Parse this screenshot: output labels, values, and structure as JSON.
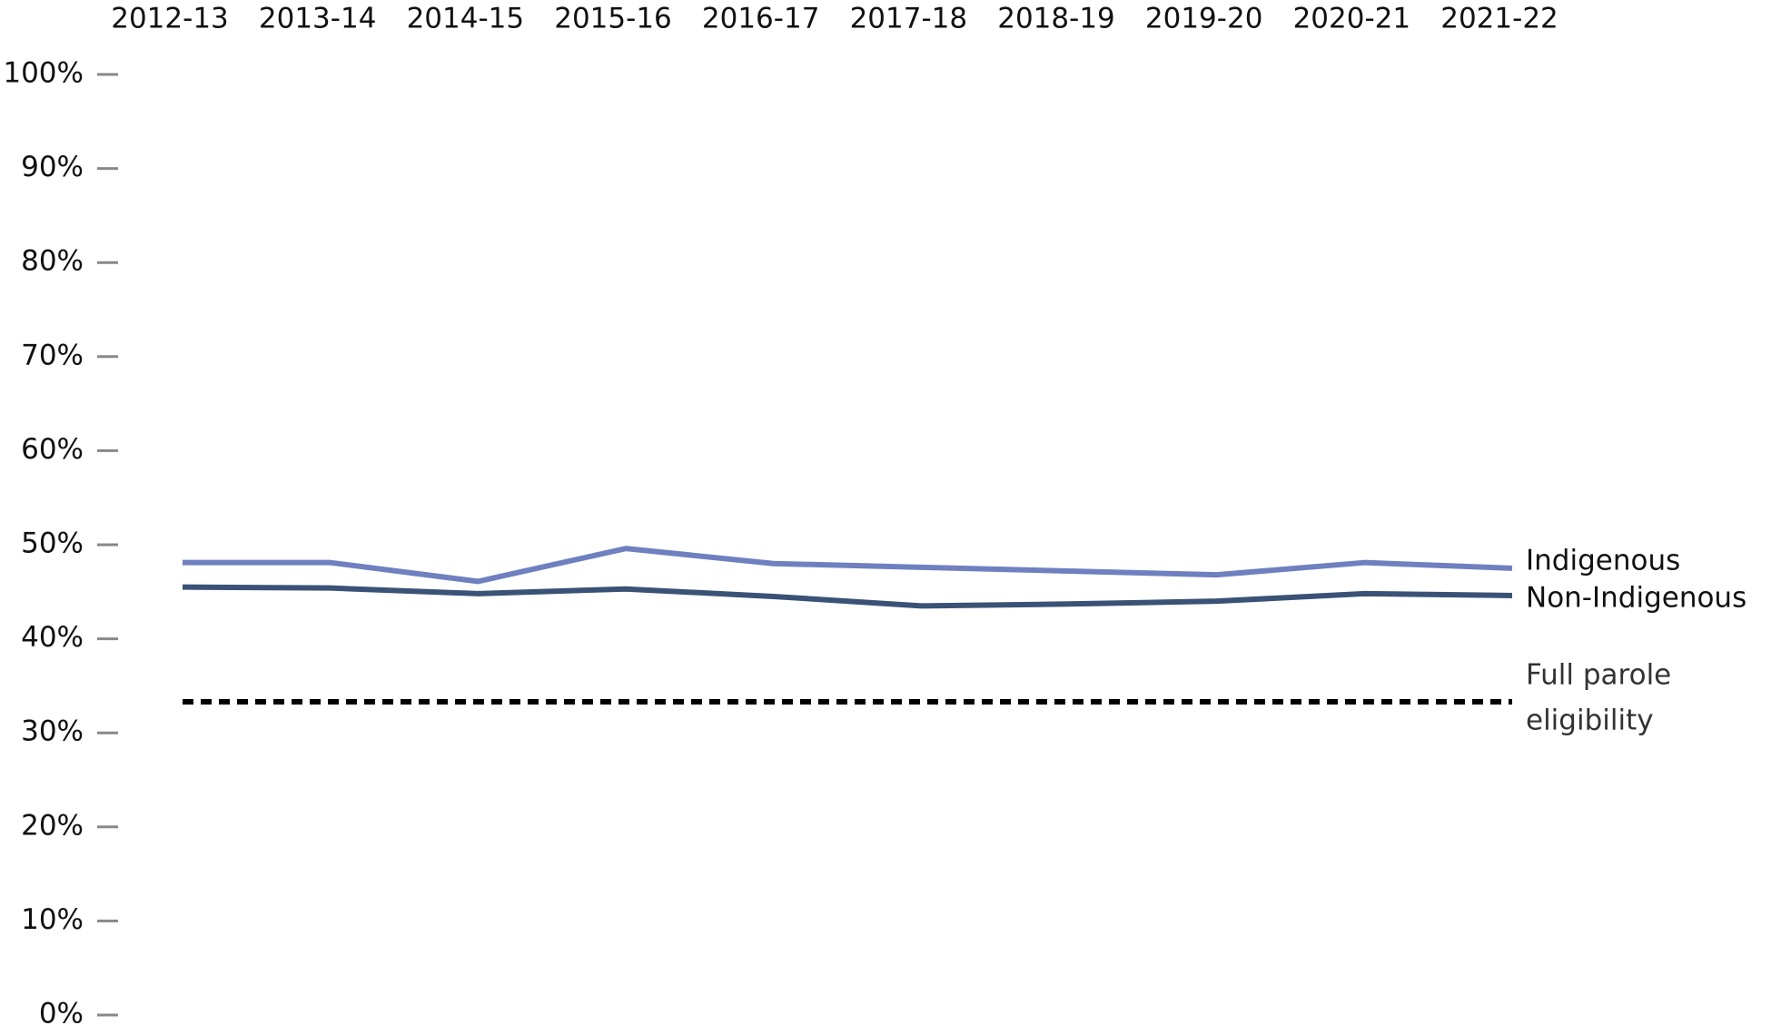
{
  "chart_data": {
    "type": "line",
    "categories": [
      "2012-13",
      "2013-14",
      "2014-15",
      "2015-16",
      "2016-17",
      "2017-18",
      "2018-19",
      "2019-20",
      "2020-21",
      "2021-22"
    ],
    "series": [
      {
        "name": "Indigenous",
        "color": "#6f80c0",
        "values": [
          48.1,
          48.1,
          46.1,
          49.6,
          48.0,
          47.6,
          47.2,
          46.8,
          48.1,
          47.5
        ]
      },
      {
        "name": "Non-Indigenous",
        "color": "#3a5276",
        "values": [
          45.5,
          45.4,
          44.8,
          45.3,
          44.5,
          43.5,
          43.7,
          44.0,
          44.8,
          44.6
        ]
      }
    ],
    "reference_line": {
      "value": 33.3,
      "color": "#000000",
      "lines": [
        "Full parole",
        "eligibility"
      ]
    },
    "ylim": [
      0,
      100
    ],
    "yticks": [
      {
        "value": 0,
        "label": "0%"
      },
      {
        "value": 10,
        "label": "10%"
      },
      {
        "value": 20,
        "label": "20%"
      },
      {
        "value": 30,
        "label": "30%"
      },
      {
        "value": 40,
        "label": "40%"
      },
      {
        "value": 50,
        "label": "50%"
      },
      {
        "value": 60,
        "label": "60%"
      },
      {
        "value": 70,
        "label": "70%"
      },
      {
        "value": 80,
        "label": "80%"
      },
      {
        "value": 90,
        "label": "90%"
      },
      {
        "value": 100,
        "label": "100%"
      }
    ]
  }
}
